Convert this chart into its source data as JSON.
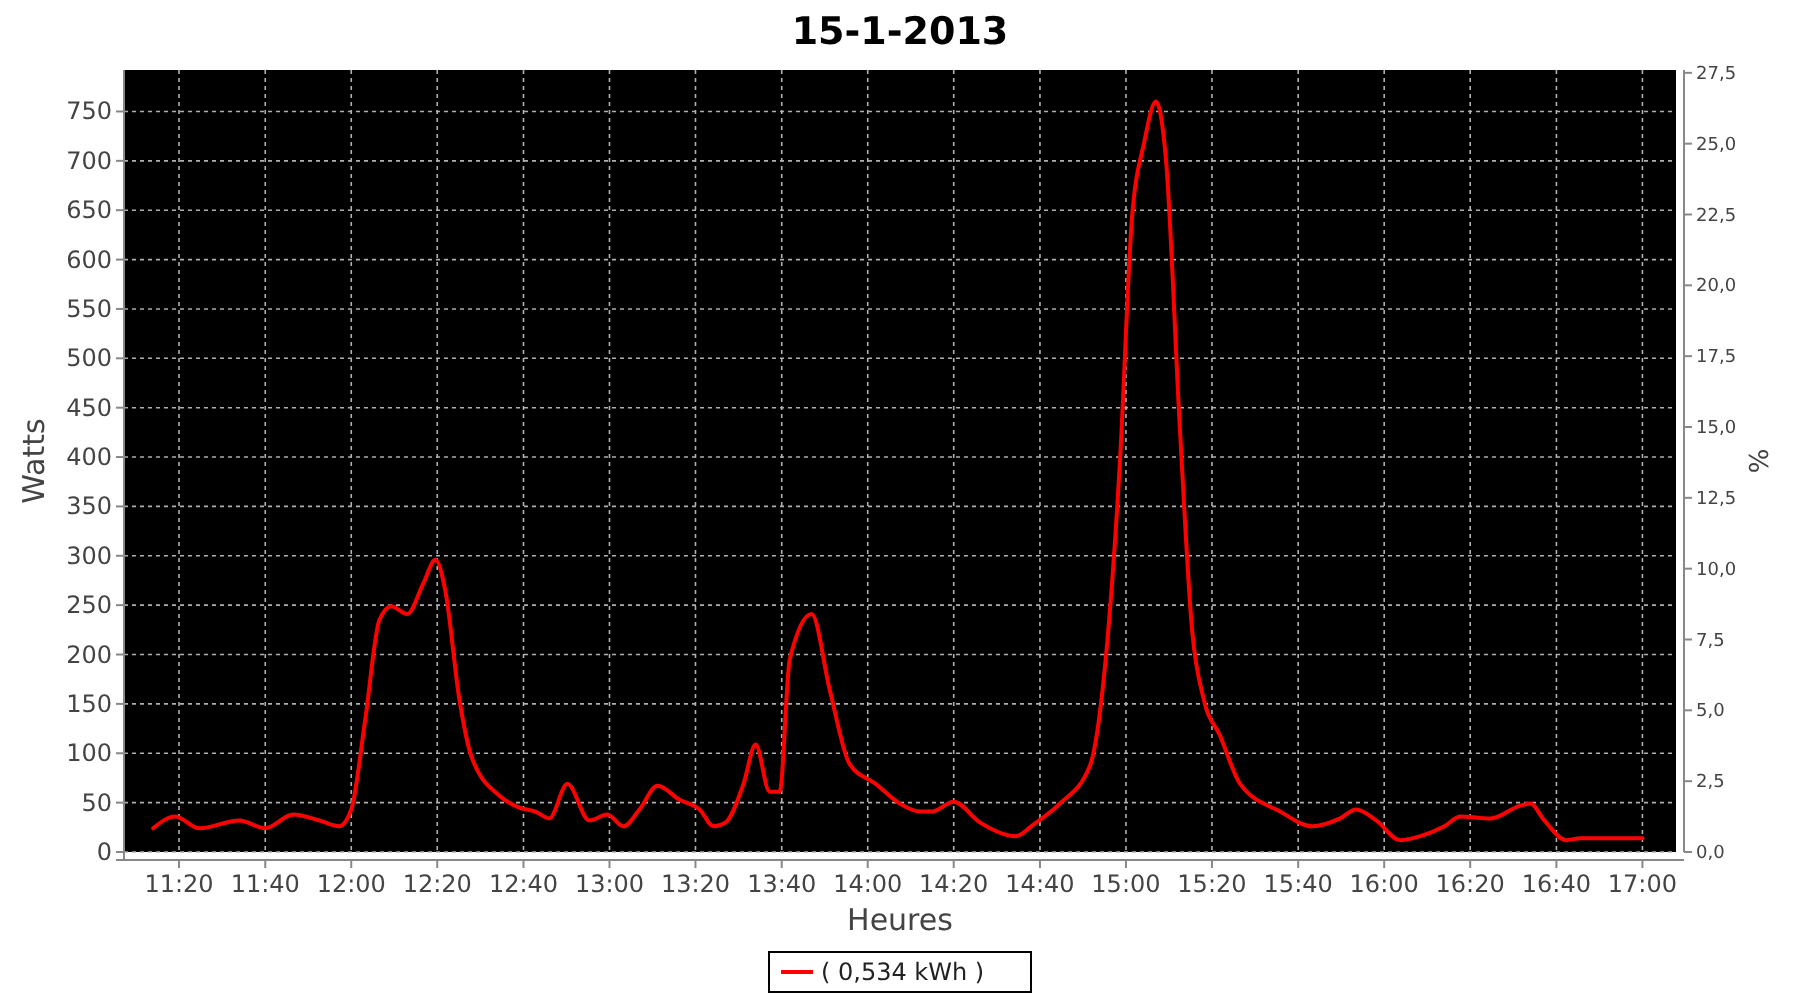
{
  "chart_data": {
    "type": "line",
    "title": "15-1-2013",
    "xlabel": "Heures",
    "ylabel": "Watts",
    "y2label": "%",
    "xlim": [
      11.12,
      17.13
    ],
    "ylim": [
      0,
      792
    ],
    "y2lim": [
      0,
      27.6
    ],
    "xticks": [
      {
        "value": 11.333,
        "label": "11:20"
      },
      {
        "value": 11.667,
        "label": "11:40"
      },
      {
        "value": 12,
        "label": "12:00"
      },
      {
        "value": 12.333,
        "label": "12:20"
      },
      {
        "value": 12.667,
        "label": "12:40"
      },
      {
        "value": 13,
        "label": "13:00"
      },
      {
        "value": 13.333,
        "label": "13:20"
      },
      {
        "value": 13.667,
        "label": "13:40"
      },
      {
        "value": 14,
        "label": "14:00"
      },
      {
        "value": 14.333,
        "label": "14:20"
      },
      {
        "value": 14.667,
        "label": "14:40"
      },
      {
        "value": 15,
        "label": "15:00"
      },
      {
        "value": 15.333,
        "label": "15:20"
      },
      {
        "value": 15.667,
        "label": "15:40"
      },
      {
        "value": 16,
        "label": "16:00"
      },
      {
        "value": 16.333,
        "label": "16:20"
      },
      {
        "value": 16.667,
        "label": "16:40"
      },
      {
        "value": 17,
        "label": "17:00"
      }
    ],
    "yticks": [
      0,
      50,
      100,
      150,
      200,
      250,
      300,
      350,
      400,
      450,
      500,
      550,
      600,
      650,
      700,
      750
    ],
    "y2ticks": [
      {
        "value": 0,
        "label": "0,0"
      },
      {
        "value": 2.5,
        "label": "2,5"
      },
      {
        "value": 5,
        "label": "5,0"
      },
      {
        "value": 7.5,
        "label": "7,5"
      },
      {
        "value": 10,
        "label": "10,0"
      },
      {
        "value": 12.5,
        "label": "12,5"
      },
      {
        "value": 15,
        "label": "15,0"
      },
      {
        "value": 17.5,
        "label": "17,5"
      },
      {
        "value": 20,
        "label": "20,0"
      },
      {
        "value": 22.5,
        "label": "22,5"
      },
      {
        "value": 25,
        "label": "25,0"
      },
      {
        "value": 27.5,
        "label": "27,5"
      }
    ],
    "grid": true,
    "legend": "bottom",
    "marker": "none",
    "line_style": "solid",
    "series": [
      {
        "name": "( 0,534 kWh )",
        "color": "#ff0000",
        "x": [
          11.233,
          11.318,
          11.411,
          11.566,
          11.667,
          11.775,
          11.876,
          11.953,
          12.0,
          12.054,
          12.109,
          12.155,
          12.217,
          12.279,
          12.326,
          12.364,
          12.419,
          12.465,
          12.574,
          12.651,
          12.713,
          12.767,
          12.837,
          12.922,
          12.992,
          13.054,
          13.116,
          13.186,
          13.271,
          13.349,
          13.403,
          13.45,
          13.519,
          13.566,
          13.62,
          13.659,
          13.698,
          13.783,
          13.853,
          13.93,
          14.031,
          14.124,
          14.202,
          14.248,
          14.333,
          14.434,
          14.574,
          14.643,
          14.744,
          14.86,
          14.915,
          14.977,
          15.023,
          15.07,
          15.116,
          15.155,
          15.209,
          15.256,
          15.302,
          15.364,
          15.442,
          15.597,
          15.721,
          15.829,
          15.891,
          15.969,
          16.062,
          16.14,
          16.233,
          16.295,
          16.411,
          16.527,
          16.566,
          16.62,
          16.705,
          16.76,
          17.0
        ],
        "values": [
          24,
          36,
          24,
          32,
          24,
          38,
          32,
          26,
          43,
          134,
          235,
          249,
          241,
          272,
          296,
          265,
          154,
          97,
          57,
          45,
          41,
          34,
          69,
          32,
          38,
          26,
          43,
          67,
          53,
          43,
          26,
          30,
          69,
          109,
          61,
          61,
          195,
          241,
          164,
          89,
          69,
          49,
          41,
          41,
          51,
          30,
          16,
          28,
          49,
          87,
          178,
          397,
          641,
          718,
          760,
          701,
          428,
          225,
          154,
          118,
          69,
          41,
          26,
          34,
          43,
          32,
          12,
          16,
          26,
          36,
          34,
          47,
          49,
          32,
          12,
          14,
          14
        ]
      }
    ]
  }
}
